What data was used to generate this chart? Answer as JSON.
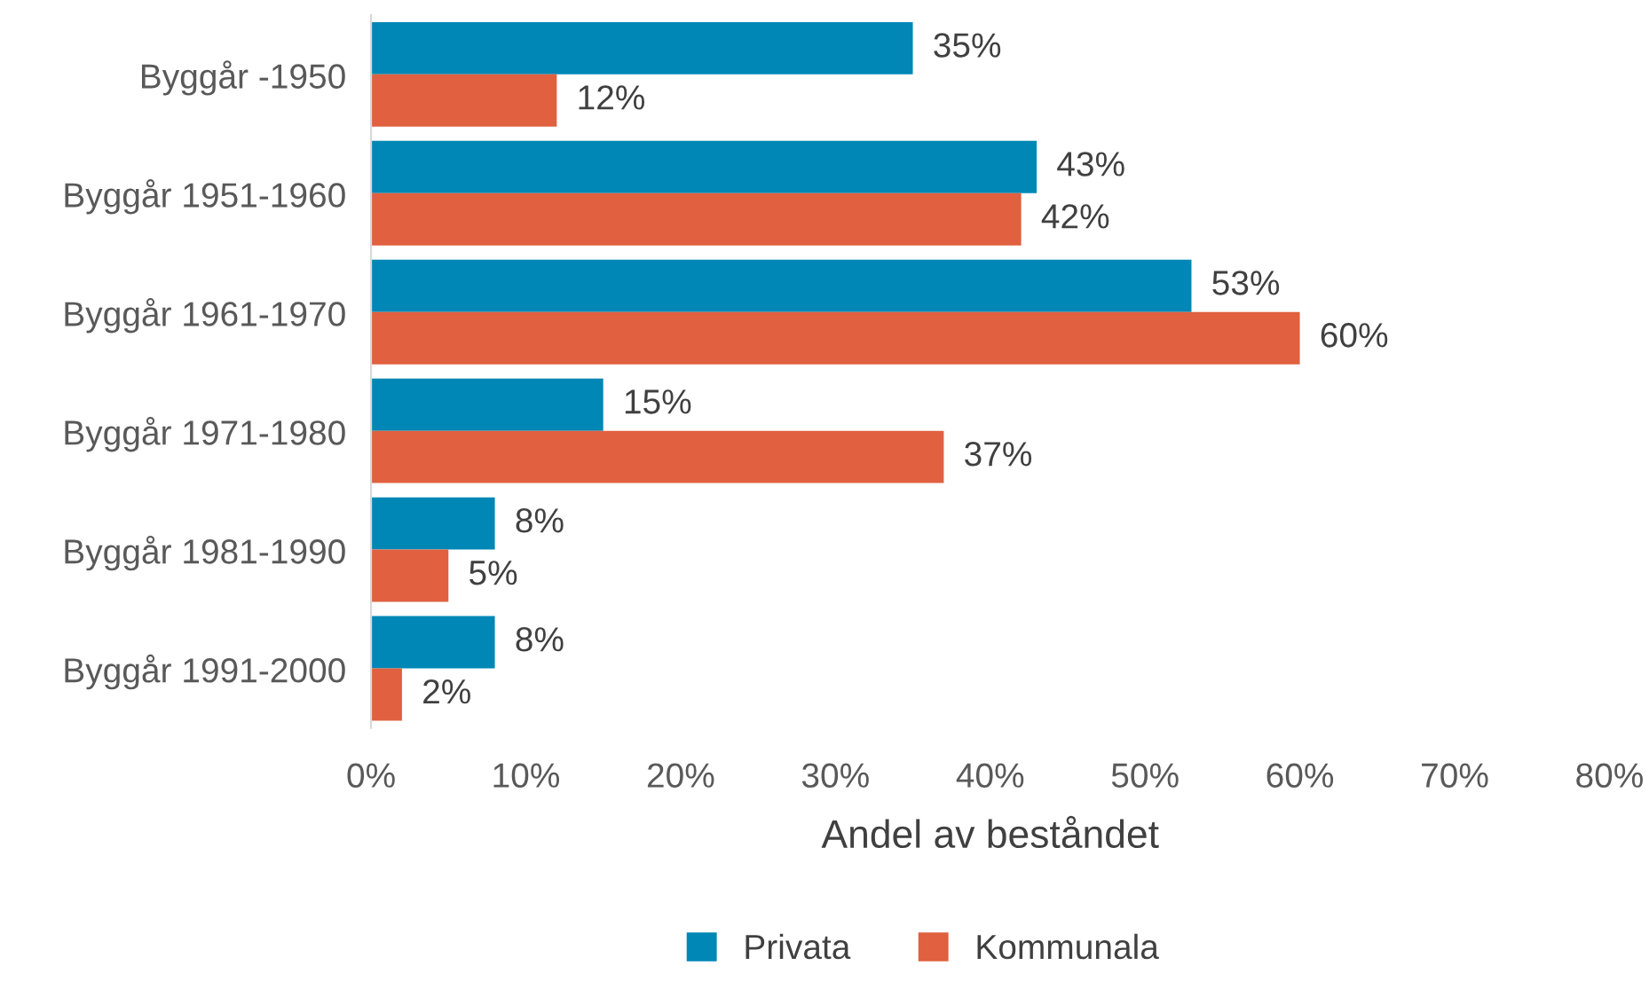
{
  "chart_data": {
    "type": "bar",
    "orientation": "horizontal",
    "categories": [
      "Byggår -1950",
      "Byggår 1951-1960",
      "Byggår 1961-1970",
      "Byggår 1971-1980",
      "Byggår 1981-1990",
      "Byggår 1991-2000"
    ],
    "series": [
      {
        "name": "Privata",
        "color": "#0087b5",
        "values": [
          35,
          43,
          53,
          15,
          8,
          8
        ],
        "value_labels": [
          "35%",
          "43%",
          "53%",
          "15%",
          "8%",
          "8%"
        ]
      },
      {
        "name": "Kommunala",
        "color": "#e0603f",
        "values": [
          12,
          42,
          60,
          37,
          5,
          2
        ],
        "value_labels": [
          "12%",
          "42%",
          "60%",
          "37%",
          "5%",
          "2%"
        ]
      }
    ],
    "xlabel": "Andel av beståndet",
    "xlim": [
      0,
      80
    ],
    "xticks": [
      {
        "value": 0,
        "label": "0%"
      },
      {
        "value": 10,
        "label": "10%"
      },
      {
        "value": 20,
        "label": "20%"
      },
      {
        "value": 30,
        "label": "30%"
      },
      {
        "value": 40,
        "label": "40%"
      },
      {
        "value": 50,
        "label": "50%"
      },
      {
        "value": 60,
        "label": "60%"
      },
      {
        "value": 70,
        "label": "70%"
      },
      {
        "value": 80,
        "label": "80%"
      }
    ],
    "grid": false,
    "legend": "bottom"
  }
}
